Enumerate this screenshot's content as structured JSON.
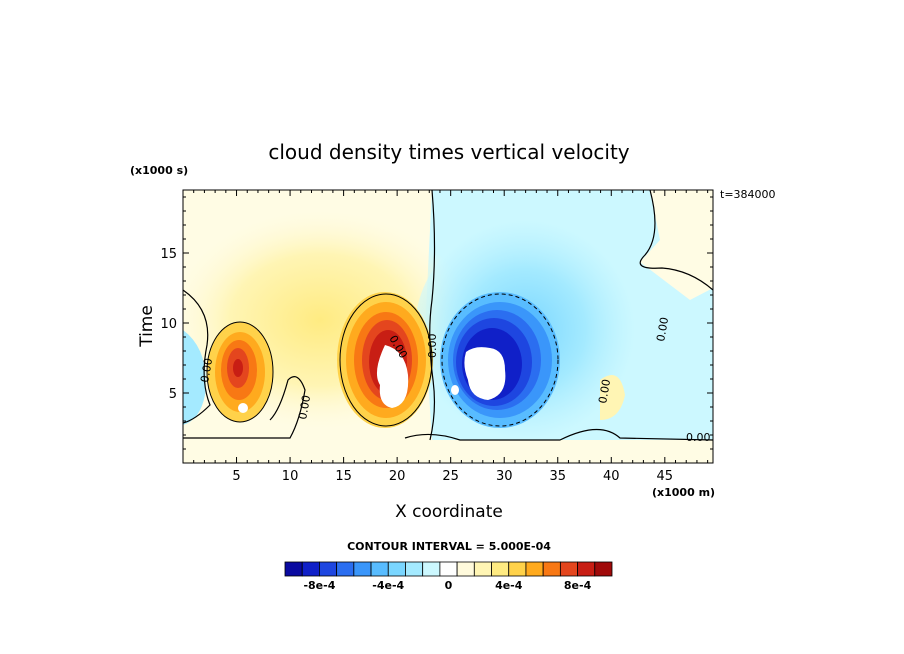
{
  "chart_data": {
    "type": "heatmap",
    "title": "cloud density times vertical velocity",
    "xlabel": "X coordinate",
    "ylabel": "Time",
    "x_units": "(x1000 m)",
    "y_units": "(x1000 s)",
    "time_label": "t=384000",
    "xlim": [
      0,
      49.5
    ],
    "ylim": [
      0,
      19.5
    ],
    "x_ticks": [
      5,
      10,
      15,
      20,
      25,
      30,
      35,
      40,
      45
    ],
    "y_ticks": [
      5,
      10,
      15
    ],
    "x_tick_labels": [
      "5",
      "10",
      "15",
      "20",
      "25",
      "30",
      "35",
      "40",
      "45"
    ],
    "y_tick_labels": [
      "5",
      "10",
      "15"
    ],
    "contour_interval_text": "CONTOUR INTERVAL = 5.000E-04",
    "zero_contour_labels": [
      "0.00",
      "0.00",
      "0.00",
      "0.00",
      "0.00",
      "0.00",
      "0.00"
    ],
    "colorbar": {
      "levels": [
        "-8e-4",
        "-4e-4",
        "0",
        "4e-4",
        "8e-4"
      ],
      "colors": [
        "#0a0aa0",
        "#1020c8",
        "#1e46e0",
        "#2b6ef0",
        "#3a96fa",
        "#58bcff",
        "#7ad6ff",
        "#a4eaff",
        "#ccf8ff",
        "#ffffff",
        "#fffadc",
        "#fff5b4",
        "#ffeb82",
        "#ffd24a",
        "#ffaa1e",
        "#f87814",
        "#e4461e",
        "#c81e14",
        "#a00a0a"
      ]
    },
    "background_color": "#fffce4",
    "features": [
      {
        "name": "positive cell left",
        "x": 6,
        "y": 7,
        "peak": 0.0008
      },
      {
        "name": "positive cell center",
        "x": 19,
        "y": 8,
        "peak": 0.0009
      },
      {
        "name": "negative cell",
        "x": 30,
        "y": 7.5,
        "peak": -0.0009
      },
      {
        "name": "weak positive band",
        "x": 12,
        "y": 13,
        "peak": 0.00015
      },
      {
        "name": "weak negative band",
        "x": 33,
        "y": 12,
        "peak": -0.0002
      }
    ]
  }
}
